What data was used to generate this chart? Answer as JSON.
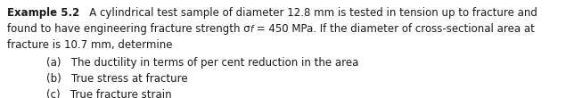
{
  "background_color": "#ffffff",
  "text_color": "#1a1a1a",
  "bold_label": "Example 5.2",
  "line1_after_bold": "   A cylindrical test sample of diameter 12.8 mm is tested in tension up to fracture and",
  "line2": "found to have engineering fracture strength σ",
  "line2_sub": "f",
  "line2_rest": " = 450 MPa. If the diameter of cross-sectional area at",
  "line3": "fracture is 10.7 mm, determine",
  "item_a": "(a)   The ductility in terms of per cent reduction in the area",
  "item_b": "(b)   True stress at fracture",
  "item_c": "(c)   True fracture strain",
  "font_size": 8.5,
  "fig_width": 6.44,
  "fig_height": 1.1,
  "dpi": 100
}
